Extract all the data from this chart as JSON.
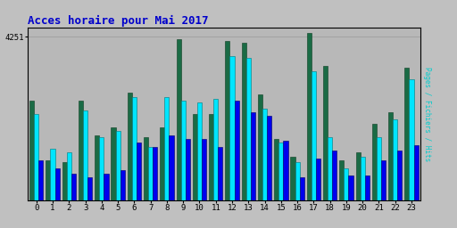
{
  "title": "Acces horaire pour Mai 2017",
  "title_color": "#0000cc",
  "title_fontsize": 9,
  "xlabel_values": [
    "0",
    "1",
    "2",
    "3",
    "4",
    "5",
    "6",
    "7",
    "8",
    "9",
    "10",
    "11",
    "12",
    "13",
    "14",
    "15",
    "16",
    "17",
    "18",
    "19",
    "20",
    "21",
    "22",
    "23"
  ],
  "ylabel": "Pages / Fichiers / Hits",
  "ylabel_color": "#00cccc",
  "ytick_label": "4251",
  "background_color": "#c0c0c0",
  "plot_bg_color": "#b8b8b8",
  "bar_width": 0.28,
  "colors": {
    "pages": "#1a6b45",
    "fichiers": "#00e5ff",
    "hits": "#0000ee"
  },
  "pages": [
    2600,
    1050,
    1000,
    2600,
    1700,
    1900,
    2800,
    1650,
    1900,
    4200,
    2250,
    2250,
    4150,
    4100,
    2750,
    1600,
    1150,
    4350,
    3500,
    1050,
    1250,
    2000,
    2300,
    3450
  ],
  "fichiers": [
    2250,
    1350,
    1250,
    2350,
    1650,
    1800,
    2700,
    1400,
    2700,
    2600,
    2550,
    2650,
    3750,
    3700,
    2400,
    1500,
    1000,
    3350,
    1650,
    850,
    1150,
    1650,
    2100,
    3150
  ],
  "hits": [
    1050,
    850,
    700,
    600,
    700,
    800,
    1500,
    1400,
    1700,
    1600,
    1600,
    1400,
    2600,
    2300,
    2200,
    1550,
    600,
    1100,
    1300,
    650,
    650,
    1050,
    1300,
    1450
  ],
  "ylim": [
    0,
    4500
  ],
  "yticks": [
    4251
  ],
  "figsize": [
    5.12,
    2.56
  ],
  "dpi": 100
}
